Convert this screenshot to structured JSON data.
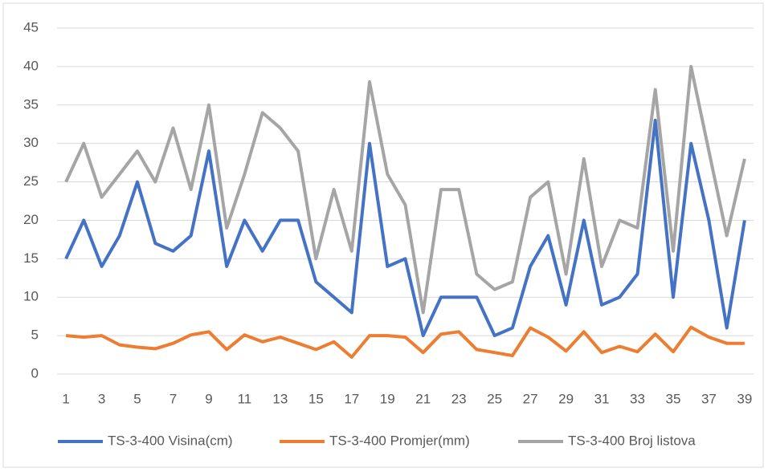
{
  "chart_data": {
    "type": "line",
    "categories": [
      1,
      null,
      3,
      null,
      5,
      null,
      7,
      null,
      9,
      null,
      11,
      null,
      13,
      null,
      15,
      null,
      17,
      null,
      19,
      null,
      21,
      null,
      23,
      null,
      25,
      null,
      27,
      null,
      29,
      null,
      31,
      null,
      33,
      null,
      35,
      null,
      37,
      null,
      39
    ],
    "series": [
      {
        "name": "TS-3-400 Visina(cm)",
        "color": "#4472c4",
        "values": [
          15,
          20,
          14,
          18,
          25,
          17,
          16,
          18,
          29,
          14,
          20,
          16,
          20,
          20,
          12,
          10,
          8,
          30,
          14,
          15,
          5,
          10,
          10,
          10,
          5,
          6,
          14,
          18,
          9,
          20,
          9,
          10,
          13,
          33,
          10,
          30,
          20,
          6,
          20
        ]
      },
      {
        "name": "TS-3-400 Promjer(mm)",
        "color": "#ed7d31",
        "values": [
          5,
          4.8,
          5,
          3.8,
          3.5,
          3.3,
          4,
          5.1,
          5.5,
          3.2,
          5.1,
          4.2,
          4.8,
          4,
          3.2,
          4.2,
          2.2,
          5,
          5,
          4.8,
          2.8,
          5.2,
          5.5,
          3.2,
          2.8,
          2.4,
          6,
          4.8,
          3,
          5.5,
          2.8,
          3.6,
          2.9,
          5.2,
          2.9,
          6.1,
          4.8,
          4,
          4
        ]
      },
      {
        "name": "TS-3-400 Broj listova",
        "color": "#a5a5a5",
        "values": [
          25,
          30,
          23,
          26,
          29,
          25,
          32,
          24,
          35,
          19,
          26,
          34,
          32,
          29,
          15,
          24,
          16,
          38,
          26,
          22,
          8,
          24,
          24,
          13,
          11,
          12,
          23,
          25,
          13,
          28,
          14,
          20,
          19,
          37,
          16,
          40,
          29,
          18,
          28
        ]
      }
    ],
    "ylim": [
      0,
      45
    ],
    "yticks": [
      0,
      5,
      10,
      15,
      20,
      25,
      30,
      35,
      40,
      45
    ],
    "grid": true,
    "legend": "bottom"
  }
}
